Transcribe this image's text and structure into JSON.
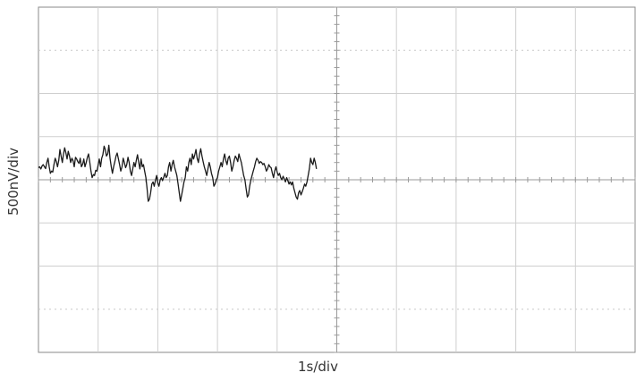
{
  "chart_data": {
    "type": "line",
    "title": "",
    "xlabel": "1s/div",
    "ylabel": "500nV/div",
    "x_divisions": 10,
    "y_divisions": 8,
    "grid": true,
    "sample_interval_div": 0.02,
    "series": [
      {
        "values": [
          0.28,
          0.3,
          0.25,
          0.32,
          0.35,
          0.3,
          0.26,
          0.4,
          0.5,
          0.3,
          0.15,
          0.2,
          0.18,
          0.35,
          0.5,
          0.42,
          0.3,
          0.45,
          0.7,
          0.55,
          0.4,
          0.6,
          0.74,
          0.62,
          0.48,
          0.66,
          0.55,
          0.4,
          0.5,
          0.44,
          0.3,
          0.52,
          0.48,
          0.42,
          0.38,
          0.5,
          0.3,
          0.36,
          0.48,
          0.3,
          0.4,
          0.52,
          0.6,
          0.4,
          0.2,
          0.05,
          0.12,
          0.1,
          0.22,
          0.2,
          0.34,
          0.48,
          0.3,
          0.5,
          0.58,
          0.78,
          0.7,
          0.55,
          0.6,
          0.8,
          0.5,
          0.3,
          0.15,
          0.3,
          0.42,
          0.55,
          0.62,
          0.48,
          0.35,
          0.2,
          0.3,
          0.5,
          0.4,
          0.28,
          0.35,
          0.52,
          0.4,
          0.2,
          0.1,
          0.25,
          0.4,
          0.3,
          0.45,
          0.58,
          0.4,
          0.25,
          0.48,
          0.3,
          0.35,
          0.2,
          0.05,
          -0.2,
          -0.5,
          -0.45,
          -0.3,
          -0.1,
          -0.05,
          -0.15,
          -0.02,
          0.1,
          -0.08,
          -0.15,
          0.0,
          0.05,
          -0.02,
          0.06,
          0.15,
          0.05,
          0.1,
          0.3,
          0.4,
          0.2,
          0.35,
          0.45,
          0.3,
          0.2,
          0.1,
          -0.1,
          -0.3,
          -0.5,
          -0.35,
          -0.2,
          -0.05,
          0.05,
          0.3,
          0.2,
          0.4,
          0.5,
          0.35,
          0.6,
          0.48,
          0.58,
          0.7,
          0.5,
          0.4,
          0.6,
          0.72,
          0.55,
          0.42,
          0.3,
          0.2,
          0.1,
          0.25,
          0.4,
          0.3,
          0.15,
          0.05,
          -0.15,
          -0.1,
          0.0,
          0.05,
          0.2,
          0.3,
          0.4,
          0.3,
          0.48,
          0.6,
          0.45,
          0.35,
          0.5,
          0.55,
          0.4,
          0.2,
          0.3,
          0.45,
          0.55,
          0.5,
          0.42,
          0.6,
          0.5,
          0.4,
          0.25,
          0.1,
          0.0,
          -0.2,
          -0.4,
          -0.35,
          -0.15,
          0.0,
          0.1,
          0.2,
          0.3,
          0.42,
          0.5,
          0.45,
          0.38,
          0.42,
          0.4,
          0.35,
          0.38,
          0.3,
          0.2,
          0.25,
          0.35,
          0.3,
          0.28,
          0.15,
          0.05,
          0.2,
          0.3,
          0.18,
          0.1,
          0.15,
          0.05,
          0.0,
          0.08,
          0.02,
          -0.05,
          0.05,
          -0.02,
          -0.1,
          -0.05,
          -0.12,
          -0.05,
          -0.2,
          -0.3,
          -0.4,
          -0.45,
          -0.3,
          -0.25,
          -0.35,
          -0.28,
          -0.2,
          -0.1,
          -0.15,
          -0.05,
          0.1,
          0.25,
          0.5,
          0.4,
          0.35,
          0.5,
          0.4,
          0.25
        ]
      }
    ]
  }
}
